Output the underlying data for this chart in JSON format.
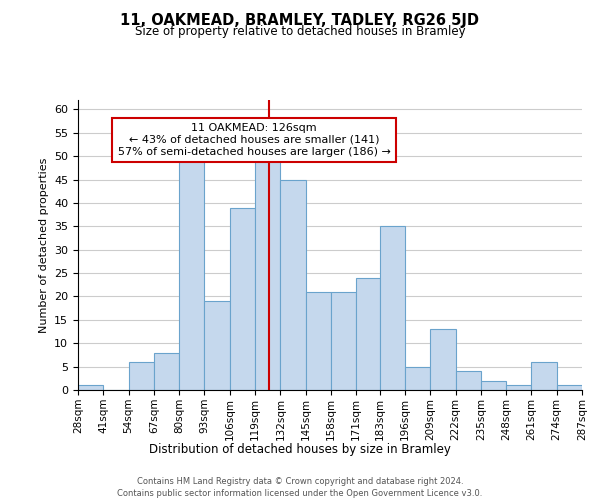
{
  "title": "11, OAKMEAD, BRAMLEY, TADLEY, RG26 5JD",
  "subtitle": "Size of property relative to detached houses in Bramley",
  "xlabel": "Distribution of detached houses by size in Bramley",
  "ylabel": "Number of detached properties",
  "bin_edges": [
    28,
    41,
    54,
    67,
    80,
    93,
    106,
    119,
    132,
    145,
    158,
    171,
    183,
    196,
    209,
    222,
    235,
    248,
    261,
    274,
    287
  ],
  "bin_labels": [
    "28sqm",
    "41sqm",
    "54sqm",
    "67sqm",
    "80sqm",
    "93sqm",
    "106sqm",
    "119sqm",
    "132sqm",
    "145sqm",
    "158sqm",
    "171sqm",
    "183sqm",
    "196sqm",
    "209sqm",
    "222sqm",
    "235sqm",
    "248sqm",
    "261sqm",
    "274sqm",
    "287sqm"
  ],
  "counts": [
    1,
    0,
    6,
    8,
    49,
    19,
    39,
    49,
    45,
    21,
    21,
    24,
    35,
    5,
    13,
    4,
    2,
    1,
    6,
    1
  ],
  "bar_color": "#c5d8ed",
  "bar_edge_color": "#6aa3cc",
  "property_line_x": 126,
  "property_line_color": "#cc0000",
  "annotation_line1": "11 OAKMEAD: 126sqm",
  "annotation_line2": "← 43% of detached houses are smaller (141)",
  "annotation_line3": "57% of semi-detached houses are larger (186) →",
  "annotation_box_edge": "#cc0000",
  "annotation_box_face": "#ffffff",
  "ylim": [
    0,
    62
  ],
  "yticks": [
    0,
    5,
    10,
    15,
    20,
    25,
    30,
    35,
    40,
    45,
    50,
    55,
    60
  ],
  "footer_line1": "Contains HM Land Registry data © Crown copyright and database right 2024.",
  "footer_line2": "Contains public sector information licensed under the Open Government Licence v3.0.",
  "background_color": "#ffffff",
  "grid_color": "#cccccc"
}
